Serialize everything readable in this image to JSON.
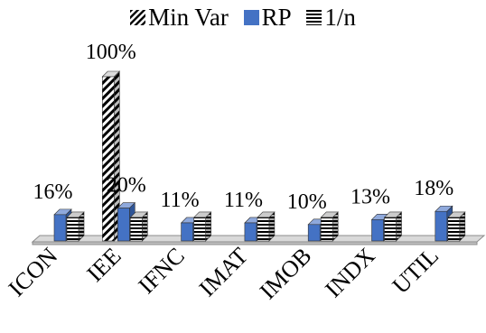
{
  "chart_data": {
    "type": "bar",
    "categories": [
      "ICON",
      "IEE",
      "IFNC",
      "IMAT",
      "IMOB",
      "INDX",
      "UTIL"
    ],
    "series": [
      {
        "name": "Min Var",
        "values": [
          0,
          100,
          0,
          0,
          0,
          0,
          0
        ]
      },
      {
        "name": "RP",
        "values": [
          16,
          20,
          11,
          11,
          10,
          13,
          18
        ]
      },
      {
        "name": "1/n",
        "values": [
          14.3,
          14.3,
          14.3,
          14.3,
          14.3,
          14.3,
          14.3
        ]
      }
    ],
    "data_labels": [
      "16%",
      "100%",
      "20%",
      "11%",
      "11%",
      "10%",
      "13%",
      "18%"
    ],
    "ylim": [
      0,
      100
    ],
    "legend_position": "top",
    "three_d": true,
    "grid": false,
    "colors": {
      "min_var": "#000000",
      "rp": "#4472c4",
      "one_over_n": "#000000"
    }
  }
}
